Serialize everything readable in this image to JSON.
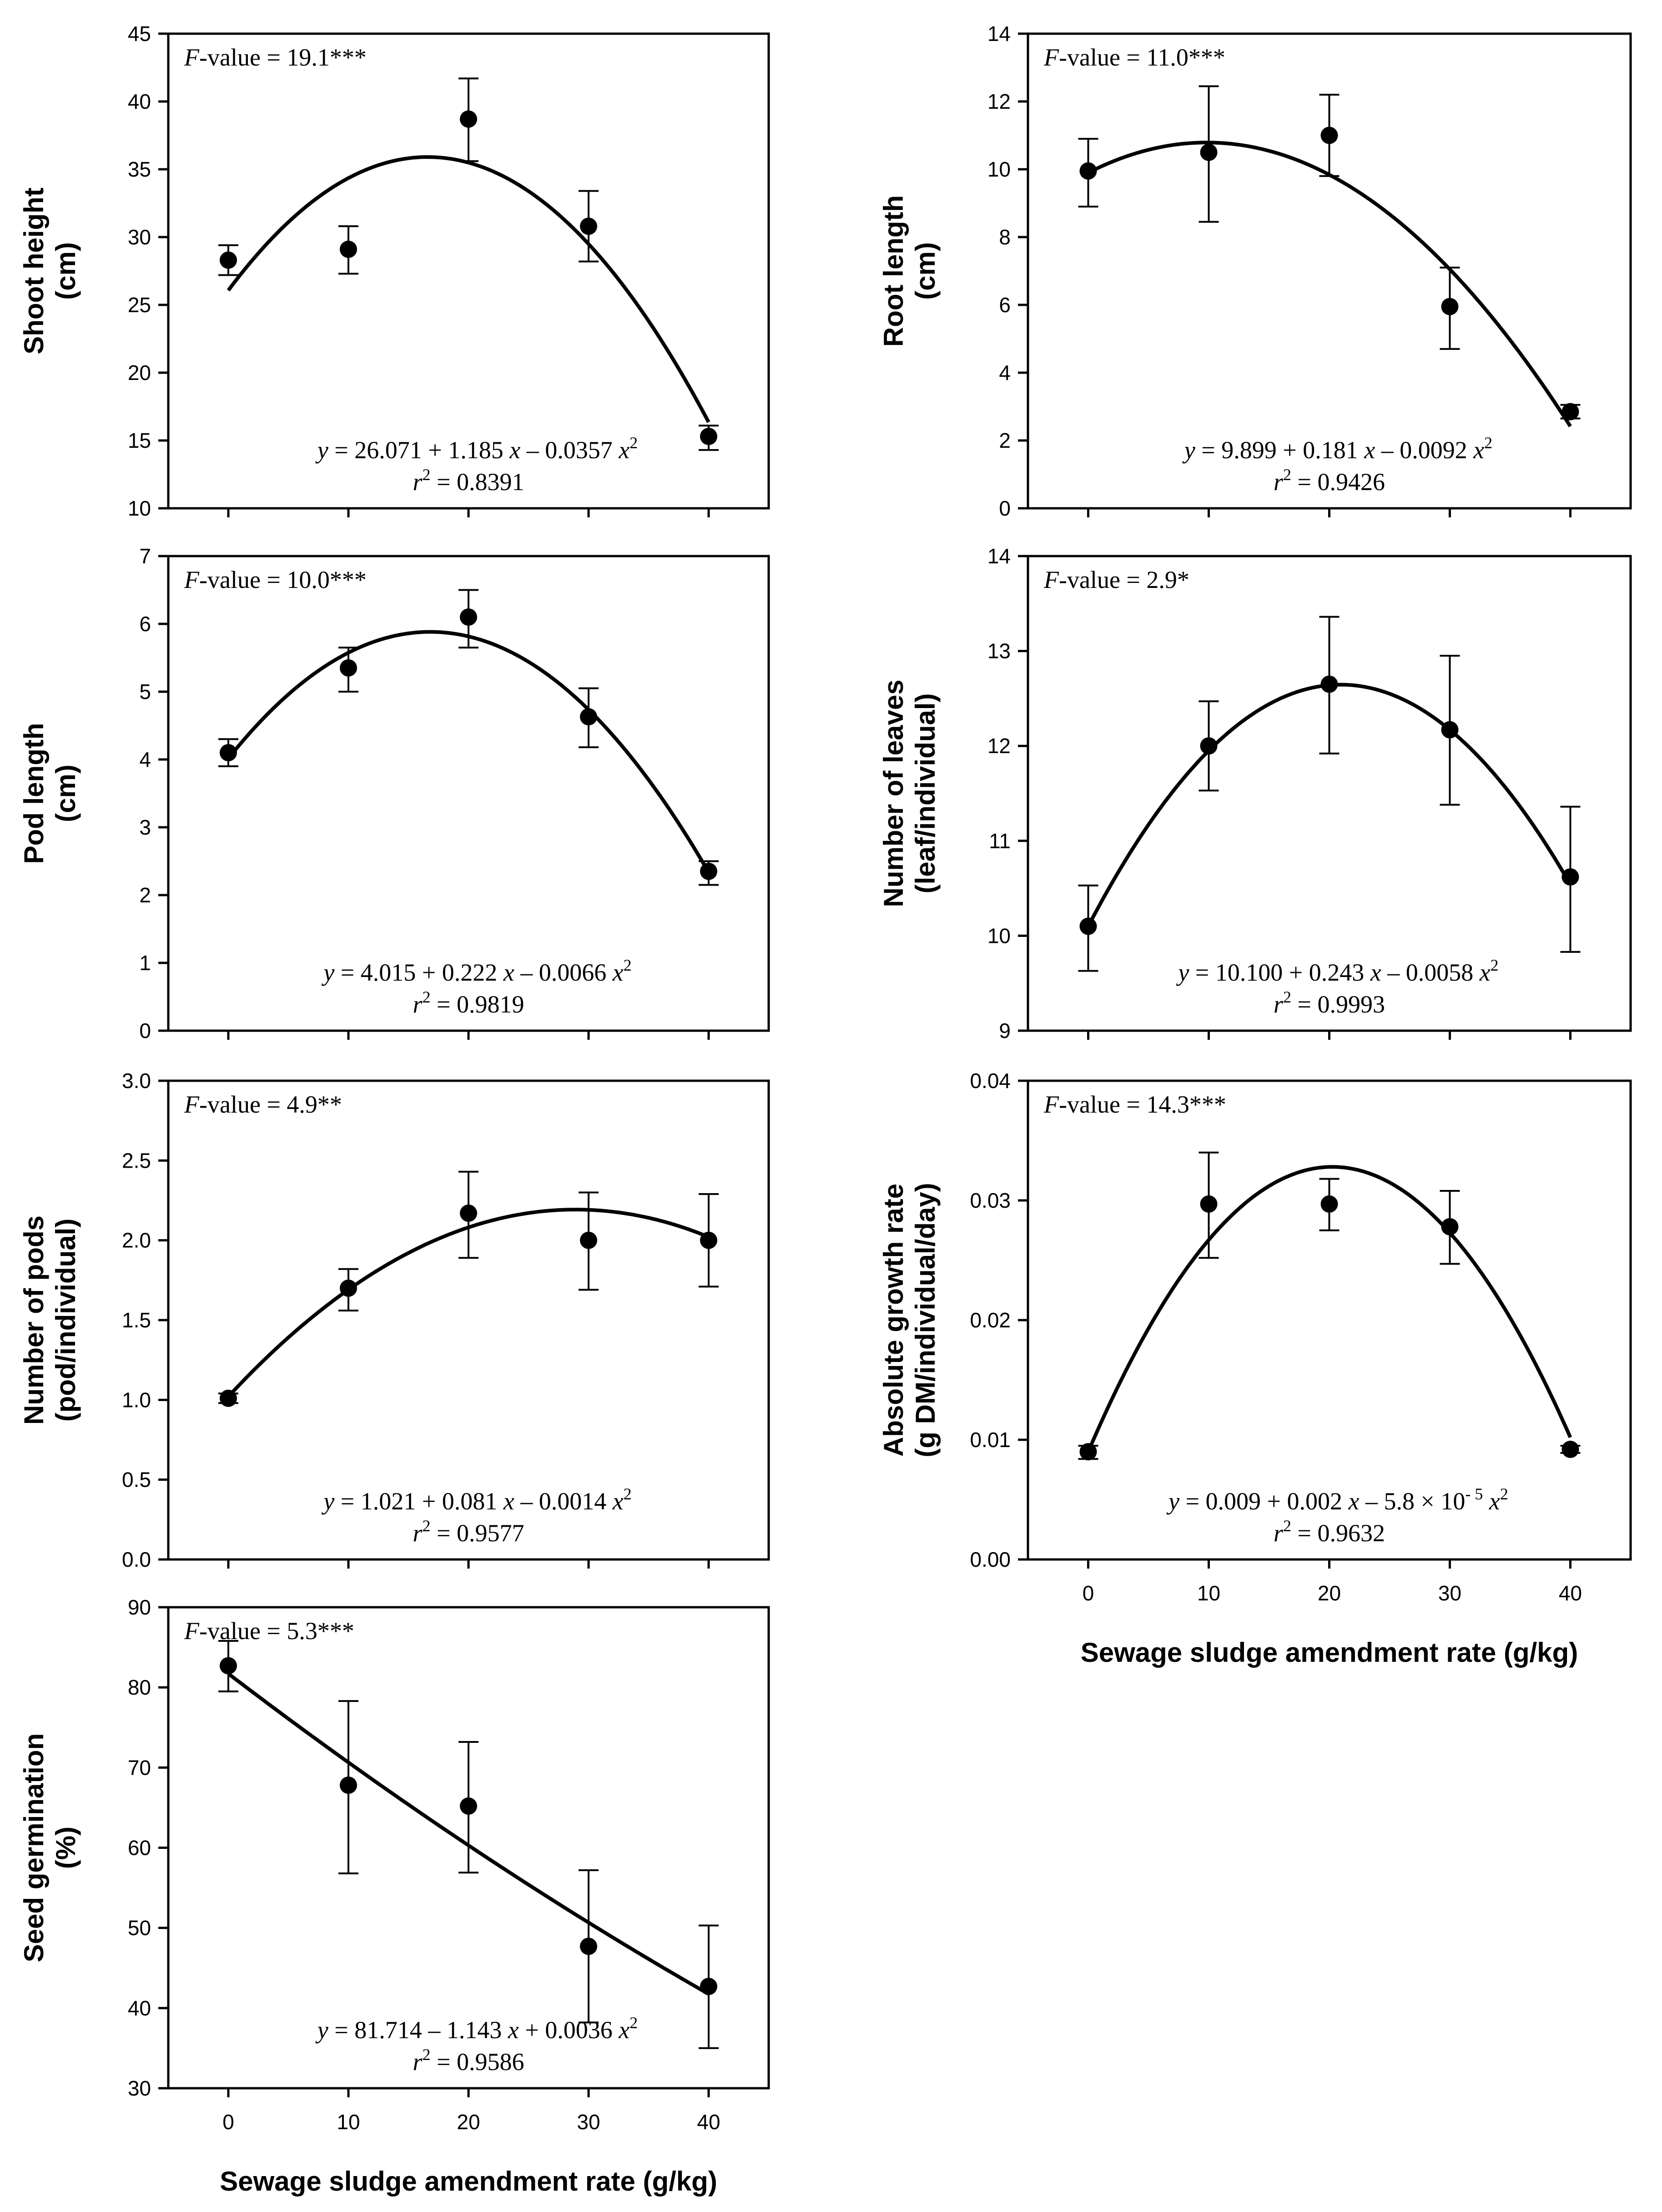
{
  "figure": {
    "shared_xlabel": "Sewage sludge amendment rate (g/kg)"
  },
  "chart_data": [
    {
      "id": "shoot-height",
      "type": "scatter",
      "ylabel": [
        "Shoot height",
        "(cm)"
      ],
      "x": [
        0,
        10,
        20,
        30,
        40
      ],
      "y": [
        28.3,
        29.1,
        38.7,
        30.8,
        15.3
      ],
      "err_low": [
        27.2,
        27.3,
        35.6,
        28.2,
        14.3
      ],
      "err_high": [
        29.4,
        30.8,
        41.7,
        33.4,
        16.1
      ],
      "fit": {
        "a": 26.071,
        "b": 1.185,
        "c": -0.0357
      },
      "xlim": [
        -5,
        45
      ],
      "ylim": [
        10,
        45
      ],
      "yticks": [
        "10",
        "15",
        "20",
        "25",
        "30",
        "35",
        "40",
        "45"
      ],
      "f_value": {
        "prefix": "F",
        "text": "-value = 19.1***"
      },
      "equation": {
        "y": "y",
        "body": " = 26.071 + 1.185 ",
        "x": "x",
        "minus": " – 0.0357 ",
        "x2": "x",
        "sup": "2"
      },
      "r2": {
        "r": "r",
        "sup": "2",
        "text": " = 0.8391"
      }
    },
    {
      "id": "root-length",
      "type": "scatter",
      "ylabel": [
        "Root length",
        "(cm)"
      ],
      "x": [
        0,
        10,
        20,
        30,
        40
      ],
      "y": [
        9.95,
        10.5,
        11.0,
        5.95,
        2.85
      ],
      "err_low": [
        8.9,
        8.45,
        9.8,
        4.7,
        2.65
      ],
      "err_high": [
        10.9,
        12.45,
        12.2,
        7.1,
        3.05
      ],
      "fit": {
        "a": 9.899,
        "b": 0.181,
        "c": -0.0092
      },
      "xlim": [
        -5,
        45
      ],
      "ylim": [
        0,
        14
      ],
      "yticks": [
        "0",
        "2",
        "4",
        "6",
        "8",
        "10",
        "12",
        "14"
      ],
      "f_value": {
        "prefix": "F",
        "text": "-value = 11.0***"
      },
      "equation": {
        "y": "y",
        "body": " = 9.899 + 0.181 ",
        "x": "x",
        "minus": " – 0.0092 ",
        "x2": "x",
        "sup": "2"
      },
      "r2": {
        "r": "r",
        "sup": "2",
        "text": " = 0.9426"
      }
    },
    {
      "id": "pod-length",
      "type": "scatter",
      "ylabel": [
        "Pod length",
        "(cm)"
      ],
      "x": [
        0,
        10,
        20,
        30,
        40
      ],
      "y": [
        4.1,
        5.35,
        6.1,
        4.63,
        2.35
      ],
      "err_low": [
        3.9,
        5.0,
        5.65,
        4.18,
        2.15
      ],
      "err_high": [
        4.3,
        5.65,
        6.5,
        5.05,
        2.5
      ],
      "fit": {
        "a": 4.015,
        "b": 0.222,
        "c": -0.0066
      },
      "xlim": [
        -5,
        45
      ],
      "ylim": [
        0,
        7
      ],
      "yticks": [
        "0",
        "1",
        "2",
        "3",
        "4",
        "5",
        "6",
        "7"
      ],
      "f_value": {
        "prefix": "F",
        "text": "-value = 10.0***"
      },
      "equation": {
        "y": "y",
        "body": " = 4.015 + 0.222 ",
        "x": "x",
        "minus": " – 0.0066 ",
        "x2": "x",
        "sup": "2"
      },
      "r2": {
        "r": "r",
        "sup": "2",
        "text": " = 0.9819"
      }
    },
    {
      "id": "number-of-leaves",
      "type": "scatter",
      "ylabel": [
        "Number of leaves",
        "(leaf/individual)"
      ],
      "x": [
        0,
        10,
        20,
        30,
        40
      ],
      "y": [
        10.1,
        12.0,
        12.65,
        12.17,
        10.62
      ],
      "err_low": [
        9.63,
        11.53,
        11.92,
        11.38,
        9.83
      ],
      "err_high": [
        10.53,
        12.47,
        13.36,
        12.95,
        11.36
      ],
      "fit": {
        "a": 10.1,
        "b": 0.243,
        "c": -0.0058
      },
      "xlim": [
        -5,
        45
      ],
      "ylim": [
        9,
        14
      ],
      "yticks": [
        "9",
        "10",
        "11",
        "12",
        "13",
        "14"
      ],
      "f_value": {
        "prefix": "F",
        "text": "-value = 2.9*"
      },
      "equation": {
        "y": "y",
        "body": " = 10.100 + 0.243 ",
        "x": "x",
        "minus": " – 0.0058 ",
        "x2": "x",
        "sup": "2"
      },
      "r2": {
        "r": "r",
        "sup": "2",
        "text": " = 0.9993"
      }
    },
    {
      "id": "number-of-pods",
      "type": "scatter",
      "ylabel": [
        "Number of pods",
        "(pod/individual)"
      ],
      "x": [
        0,
        10,
        20,
        30,
        40
      ],
      "y": [
        1.01,
        1.7,
        2.17,
        2.0,
        2.0
      ],
      "err_low": [
        0.98,
        1.56,
        1.89,
        1.69,
        1.71
      ],
      "err_high": [
        1.04,
        1.82,
        2.43,
        2.3,
        2.29
      ],
      "fit": {
        "a": 1.021,
        "b": 0.081,
        "c": -0.0014
      },
      "xlim": [
        -5,
        45
      ],
      "ylim": [
        0,
        3
      ],
      "yticks": [
        "0.0",
        "0.5",
        "1.0",
        "1.5",
        "2.0",
        "2.5",
        "3.0"
      ],
      "f_value": {
        "prefix": "F",
        "text": "-value = 4.9**"
      },
      "equation": {
        "y": "y",
        "body": " = 1.021 + 0.081 ",
        "x": "x",
        "minus": " – 0.0014 ",
        "x2": "x",
        "sup": "2"
      },
      "r2": {
        "r": "r",
        "sup": "2",
        "text": " = 0.9577"
      }
    },
    {
      "id": "absolute-growth-rate",
      "type": "scatter",
      "ylabel": [
        "Absolute growth rate",
        "(g DM/individual/day)"
      ],
      "x": [
        0,
        10,
        20,
        30,
        40
      ],
      "y": [
        0.009,
        0.0297,
        0.0297,
        0.0278,
        0.0092
      ],
      "err_low": [
        0.0084,
        0.0252,
        0.0275,
        0.0247,
        0.0089
      ],
      "err_high": [
        0.0095,
        0.034,
        0.0318,
        0.0308,
        0.0095
      ],
      "fit": {
        "a": 0.009,
        "b": 0.00235,
        "c": -5.8e-05
      },
      "xlim": [
        -5,
        45
      ],
      "ylim": [
        0,
        0.04
      ],
      "yticks": [
        "0.00",
        "0.01",
        "0.02",
        "0.03",
        "0.04"
      ],
      "xticks": [
        "0",
        "10",
        "20",
        "30",
        "40"
      ],
      "xlabel": "Sewage sludge amendment rate (g/kg)",
      "f_value": {
        "prefix": "F",
        "text": "-value = 14.3***"
      },
      "equation": {
        "y": "y",
        "body": " = 0.009 + 0.002 ",
        "x": "x",
        "minus": " – 5.8 × 10",
        "sup_exp": "- 5",
        "x2": "x",
        "sup": "2"
      },
      "r2": {
        "r": "r",
        "sup": "2",
        "text": " = 0.9632"
      }
    },
    {
      "id": "seed-germination",
      "type": "scatter",
      "ylabel": [
        "Seed germination",
        "(%)"
      ],
      "x": [
        0,
        10,
        20,
        30,
        40
      ],
      "y": [
        82.7,
        67.8,
        65.2,
        47.7,
        42.7
      ],
      "err_low": [
        79.5,
        56.8,
        56.9,
        38.2,
        35.0
      ],
      "err_high": [
        85.8,
        78.3,
        73.2,
        57.2,
        50.3
      ],
      "fit": {
        "a": 81.714,
        "b": -1.143,
        "c": 0.0036
      },
      "xlim": [
        -5,
        45
      ],
      "ylim": [
        30,
        90
      ],
      "yticks": [
        "30",
        "40",
        "50",
        "60",
        "70",
        "80",
        "90"
      ],
      "xticks": [
        "0",
        "10",
        "20",
        "30",
        "40"
      ],
      "xlabel": "Sewage sludge amendment rate (g/kg)",
      "f_value": {
        "prefix": "F",
        "text": "-value = 5.3***"
      },
      "equation": {
        "y": "y",
        "body": " = 81.714 – 1.143 ",
        "x": "x",
        "minus": " + 0.0036 ",
        "x2": "x",
        "sup": "2"
      },
      "r2": {
        "r": "r",
        "sup": "2",
        "text": " = 0.9586"
      }
    }
  ]
}
